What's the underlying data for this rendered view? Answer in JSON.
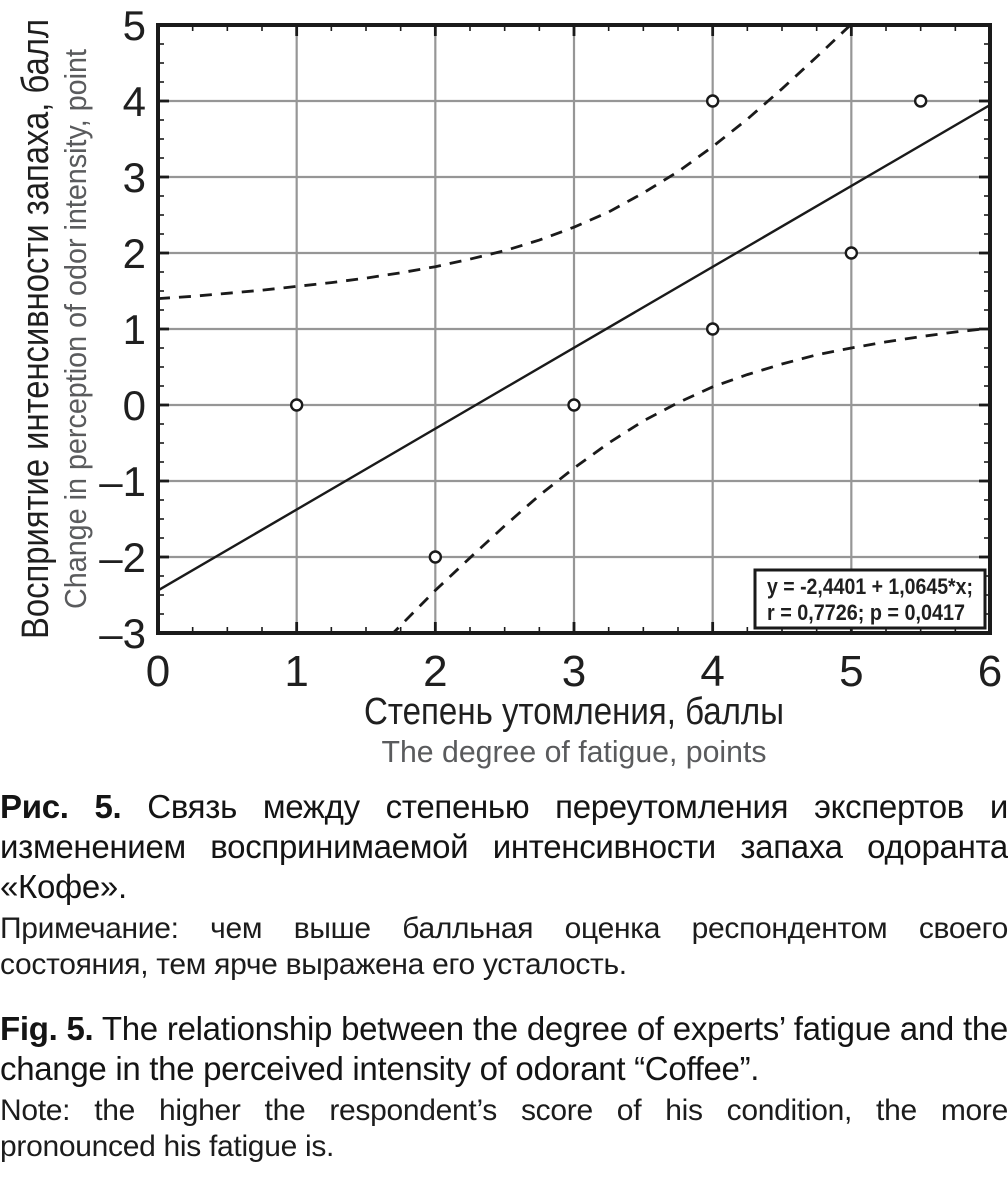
{
  "figure": {
    "caption_ru": {
      "label": "Рис. 5.",
      "text": "Связь между степенью переутомления экспертов и изменением воспринимаемой интенсивности запаха одоранта «Кофе».",
      "note": "Примечание: чем выше балльная оценка респондентом своего состояния, тем ярче выражена его усталость."
    },
    "caption_en": {
      "label": "Fig. 5.",
      "text": "The relationship between the degree of experts’ fatigue and the change in the perceived intensity of odorant “Coffee”.",
      "note": "Note: the higher the respondent’s score of his condition, the more pronounced his fatigue is."
    }
  },
  "chart_data": {
    "type": "scatter",
    "xlabel_ru": "Степень утомления, баллы",
    "xlabel_en": "The degree of fatigue, points",
    "ylabel_ru": "Восприятие интенсивности запаха, балл",
    "ylabel_en": "Change in perception of odor intensity, point",
    "xlim": [
      0,
      6
    ],
    "ylim": [
      -3,
      5
    ],
    "x_ticks": [
      0,
      1,
      2,
      3,
      4,
      5,
      6
    ],
    "x_tick_labels": [
      "0",
      "1",
      "2",
      "3",
      "4",
      "5",
      "6"
    ],
    "y_ticks": [
      5,
      4,
      3,
      2,
      1,
      0,
      -1,
      -2,
      -3
    ],
    "y_tick_labels": [
      "5",
      "4",
      "3",
      "2",
      "1",
      "0",
      "–1",
      "–2",
      "–3"
    ],
    "minor_tick_step": 0.25,
    "grid": true,
    "legend_position": "bottom-right",
    "points": [
      [
        1,
        0
      ],
      [
        2,
        -2
      ],
      [
        3,
        0
      ],
      [
        4,
        1
      ],
      [
        4,
        4
      ],
      [
        5,
        2
      ],
      [
        5.5,
        4
      ]
    ],
    "regression": {
      "intercept": -2.4401,
      "slope": 1.0645
    },
    "upper_band": [
      [
        0,
        1.4
      ],
      [
        0.25,
        1.43
      ],
      [
        0.5,
        1.47
      ],
      [
        0.75,
        1.51
      ],
      [
        1,
        1.56
      ],
      [
        1.25,
        1.61
      ],
      [
        1.5,
        1.67
      ],
      [
        1.75,
        1.74
      ],
      [
        2,
        1.82
      ],
      [
        2.25,
        1.92
      ],
      [
        2.5,
        2.03
      ],
      [
        2.75,
        2.17
      ],
      [
        3,
        2.34
      ],
      [
        3.25,
        2.54
      ],
      [
        3.5,
        2.79
      ],
      [
        3.75,
        3.07
      ],
      [
        4,
        3.4
      ],
      [
        4.25,
        3.76
      ],
      [
        4.5,
        4.16
      ],
      [
        4.75,
        4.58
      ],
      [
        5,
        5.01
      ],
      [
        5.25,
        5.47
      ]
    ],
    "lower_band": [
      [
        1.25,
        -3.83
      ],
      [
        1.5,
        -3.36
      ],
      [
        1.75,
        -2.9
      ],
      [
        2,
        -2.44
      ],
      [
        2.25,
        -2.01
      ],
      [
        2.5,
        -1.59
      ],
      [
        2.75,
        -1.19
      ],
      [
        3,
        -0.83
      ],
      [
        3.25,
        -0.5
      ],
      [
        3.5,
        -0.21
      ],
      [
        3.75,
        0.03
      ],
      [
        4,
        0.24
      ],
      [
        4.25,
        0.4
      ],
      [
        4.5,
        0.54
      ],
      [
        4.75,
        0.66
      ],
      [
        5,
        0.75
      ],
      [
        5.25,
        0.83
      ],
      [
        5.5,
        0.9
      ],
      [
        5.75,
        0.96
      ],
      [
        6,
        1.01
      ]
    ],
    "legend_lines": [
      "y = -2,4401 + 1,0645*x;",
      "r = 0,7726; p = 0,0417"
    ],
    "colors": {
      "grid": "#969696",
      "axis": "#1a1a1a",
      "line": "#1a1a1a",
      "text": "#1f1f1f",
      "secondary": "#5a5b5d",
      "background": "#ffffff"
    }
  }
}
